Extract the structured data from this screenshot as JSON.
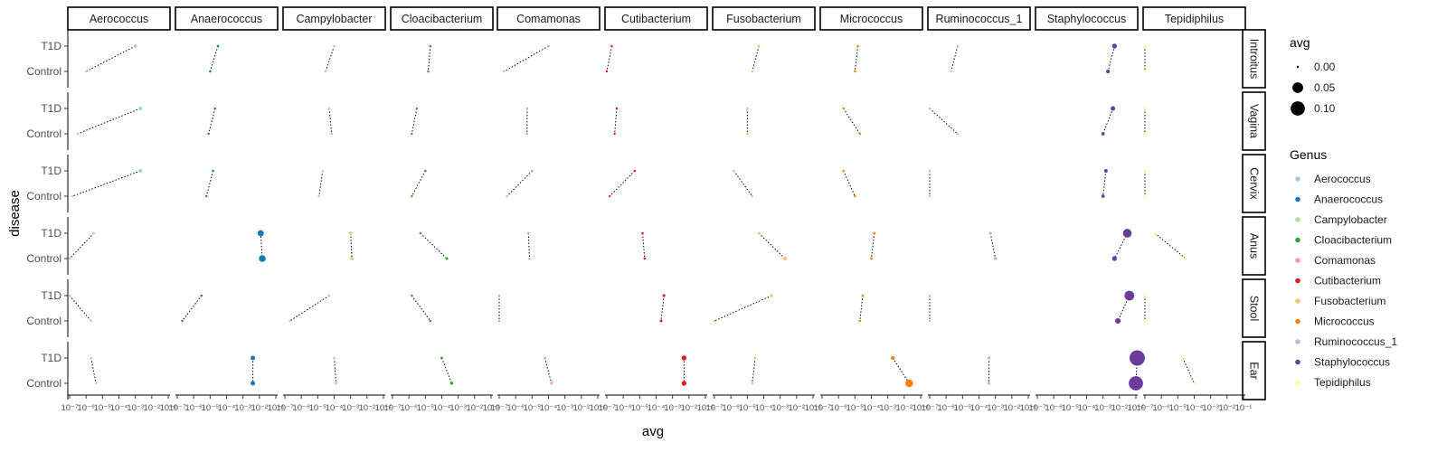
{
  "chart_data": {
    "type": "scatter",
    "subtype": "faceted dumbbell plot",
    "xlabel": "avg",
    "ylabel": "disease",
    "x_scale": "log10",
    "x_tick_labels": [
      "10⁻⁷",
      "10⁻⁶",
      "10⁻⁵",
      "10⁻⁴",
      "10⁻³",
      "10⁻²",
      "10⁻¹"
    ],
    "y_categories": [
      "T1D",
      "Control"
    ],
    "column_facets": [
      "Aerococcus",
      "Anaerococcus",
      "Campylobacter",
      "Cloacibacterium",
      "Comamonas",
      "Cutibacterium",
      "Fusobacterium",
      "Micrococcus",
      "Ruminococcus_1",
      "Staphylococcus",
      "Tepidiphilus"
    ],
    "row_facets": [
      "Introitus",
      "Vagina",
      "Cervix",
      "Anus",
      "Stool",
      "Ear"
    ],
    "colors": {
      "Aerococcus": "#a6cee3",
      "Anaerococcus": "#1f78b4",
      "Campylobacter": "#b2df8a",
      "Cloacibacterium": "#33a02c",
      "Comamonas": "#fb9a99",
      "Cutibacterium": "#e31a1c",
      "Fusobacterium": "#fdbf6f",
      "Micrococcus": "#ff7f00",
      "Ruminococcus_1": "#cab2d6",
      "Staphylococcus": "#6a3d9a",
      "Tepidiphilus": "#ffff99"
    },
    "size_legend": {
      "title": "avg",
      "labels": [
        "0.00",
        "0.05",
        "0.10"
      ],
      "values": [
        0.0,
        0.05,
        0.1
      ]
    },
    "color_legend": {
      "title": "Genus"
    },
    "values": [
      {
        "genus": "Aerococcus",
        "site": "Introitus",
        "T1D": 0.001,
        "Control": 1e-06
      },
      {
        "genus": "Aerococcus",
        "site": "Vagina",
        "T1D": 0.002,
        "Control": 3e-07
      },
      {
        "genus": "Aerococcus",
        "site": "Cervix",
        "T1D": 0.002,
        "Control": 1.5e-07
      },
      {
        "genus": "Aerococcus",
        "site": "Anus",
        "T1D": 3e-06,
        "Control": 1e-07
      },
      {
        "genus": "Aerococcus",
        "site": "Stool",
        "T1D": 1e-07,
        "Control": 2e-06
      },
      {
        "genus": "Aerococcus",
        "site": "Ear",
        "T1D": 2e-06,
        "Control": 4e-06
      },
      {
        "genus": "Anaerococcus",
        "site": "Introitus",
        "T1D": 3e-05,
        "Control": 1e-05
      },
      {
        "genus": "Anaerococcus",
        "site": "Vagina",
        "T1D": 2e-05,
        "Control": 8e-06
      },
      {
        "genus": "Anaerococcus",
        "site": "Cervix",
        "T1D": 1.5e-05,
        "Control": 6e-06
      },
      {
        "genus": "Anaerococcus",
        "site": "Anus",
        "T1D": 0.012,
        "Control": 0.015
      },
      {
        "genus": "Anaerococcus",
        "site": "Stool",
        "T1D": 3e-06,
        "Control": 2e-07
      },
      {
        "genus": "Anaerococcus",
        "site": "Ear",
        "T1D": 0.004,
        "Control": 0.004
      },
      {
        "genus": "Campylobacter",
        "site": "Introitus",
        "T1D": 0.0001,
        "Control": 3e-05
      },
      {
        "genus": "Campylobacter",
        "site": "Vagina",
        "T1D": 5e-05,
        "Control": 7e-05
      },
      {
        "genus": "Campylobacter",
        "site": "Cervix",
        "T1D": 2e-05,
        "Control": 1.2e-05
      },
      {
        "genus": "Campylobacter",
        "site": "Anus",
        "T1D": 0.001,
        "Control": 0.0012
      },
      {
        "genus": "Campylobacter",
        "site": "Stool",
        "T1D": 5e-05,
        "Control": 2e-07
      },
      {
        "genus": "Campylobacter",
        "site": "Ear",
        "T1D": 0.0001,
        "Control": 0.00013
      },
      {
        "genus": "Cloacibacterium",
        "site": "Introitus",
        "T1D": 2e-05,
        "Control": 1.5e-05
      },
      {
        "genus": "Cloacibacterium",
        "site": "Vagina",
        "T1D": 3e-06,
        "Control": 1.5e-06
      },
      {
        "genus": "Cloacibacterium",
        "site": "Cervix",
        "T1D": 1e-05,
        "Control": 1.5e-06
      },
      {
        "genus": "Cloacibacterium",
        "site": "Anus",
        "T1D": 5e-06,
        "Control": 0.0002
      },
      {
        "genus": "Cloacibacterium",
        "site": "Stool",
        "T1D": 1.5e-06,
        "Control": 2e-05
      },
      {
        "genus": "Cloacibacterium",
        "site": "Ear",
        "T1D": 0.0001,
        "Control": 0.0004
      },
      {
        "genus": "Comamonas",
        "site": "Introitus",
        "T1D": 0.0001,
        "Control": 2e-07
      },
      {
        "genus": "Comamonas",
        "site": "Vagina",
        "T1D": 5e-06,
        "Control": 5e-06
      },
      {
        "genus": "Comamonas",
        "site": "Cervix",
        "T1D": 1e-05,
        "Control": 3e-07
      },
      {
        "genus": "Comamonas",
        "site": "Anus",
        "T1D": 6e-06,
        "Control": 7e-06
      },
      {
        "genus": "Comamonas",
        "site": "Stool",
        "T1D": 1e-07,
        "Control": 1e-07
      },
      {
        "genus": "Comamonas",
        "site": "Ear",
        "T1D": 6e-05,
        "Control": 0.00015
      },
      {
        "genus": "Cutibacterium",
        "site": "Introitus",
        "T1D": 2e-07,
        "Control": 1e-07
      },
      {
        "genus": "Cutibacterium",
        "site": "Vagina",
        "T1D": 4e-07,
        "Control": 3e-07
      },
      {
        "genus": "Cutibacterium",
        "site": "Cervix",
        "T1D": 5e-06,
        "Control": 1.5e-07
      },
      {
        "genus": "Cutibacterium",
        "site": "Anus",
        "T1D": 1.5e-05,
        "Control": 2e-05
      },
      {
        "genus": "Cutibacterium",
        "site": "Stool",
        "T1D": 0.0003,
        "Control": 0.0002
      },
      {
        "genus": "Cutibacterium",
        "site": "Ear",
        "T1D": 0.005,
        "Control": 0.005
      },
      {
        "genus": "Fusobacterium",
        "site": "Introitus",
        "T1D": 5e-05,
        "Control": 2e-05
      },
      {
        "genus": "Fusobacterium",
        "site": "Vagina",
        "T1D": 1e-05,
        "Control": 1e-05
      },
      {
        "genus": "Fusobacterium",
        "site": "Cervix",
        "T1D": 1.5e-06,
        "Control": 2e-05
      },
      {
        "genus": "Fusobacterium",
        "site": "Anus",
        "T1D": 5e-05,
        "Control": 0.002
      },
      {
        "genus": "Fusobacterium",
        "site": "Stool",
        "T1D": 0.0003,
        "Control": 1e-07
      },
      {
        "genus": "Fusobacterium",
        "site": "Ear",
        "T1D": 3e-05,
        "Control": 2e-05
      },
      {
        "genus": "Micrococcus",
        "site": "Introitus",
        "T1D": 1.5e-05,
        "Control": 1e-05
      },
      {
        "genus": "Micrococcus",
        "site": "Vagina",
        "T1D": 2e-06,
        "Control": 2e-05
      },
      {
        "genus": "Micrococcus",
        "site": "Cervix",
        "T1D": 2e-06,
        "Control": 1e-05
      },
      {
        "genus": "Micrococcus",
        "site": "Anus",
        "T1D": 0.00015,
        "Control": 0.0001
      },
      {
        "genus": "Micrococcus",
        "site": "Stool",
        "T1D": 3e-05,
        "Control": 2e-05
      },
      {
        "genus": "Micrococcus",
        "site": "Ear",
        "T1D": 0.002,
        "Control": 0.02
      },
      {
        "genus": "Ruminococcus_1",
        "site": "Introitus",
        "T1D": 5e-06,
        "Control": 2e-06
      },
      {
        "genus": "Ruminococcus_1",
        "site": "Vagina",
        "T1D": 1e-07,
        "Control": 5e-06
      },
      {
        "genus": "Ruminococcus_1",
        "site": "Cervix",
        "T1D": 1e-07,
        "Control": 1e-07
      },
      {
        "genus": "Ruminococcus_1",
        "site": "Anus",
        "T1D": 0.0005,
        "Control": 0.001
      },
      {
        "genus": "Ruminococcus_1",
        "site": "Stool",
        "T1D": 1e-07,
        "Control": 1e-07
      },
      {
        "genus": "Ruminococcus_1",
        "site": "Ear",
        "T1D": 0.0004,
        "Control": 0.0004
      },
      {
        "genus": "Staphylococcus",
        "site": "Introitus",
        "T1D": 0.005,
        "Control": 0.002
      },
      {
        "genus": "Staphylococcus",
        "site": "Vagina",
        "T1D": 0.004,
        "Control": 0.001
      },
      {
        "genus": "Staphylococcus",
        "site": "Cervix",
        "T1D": 0.0015,
        "Control": 0.001
      },
      {
        "genus": "Staphylococcus",
        "site": "Anus",
        "T1D": 0.03,
        "Control": 0.005
      },
      {
        "genus": "Staphylococcus",
        "site": "Stool",
        "T1D": 0.04,
        "Control": 0.008
      },
      {
        "genus": "Staphylococcus",
        "site": "Ear",
        "T1D": 0.12,
        "Control": 0.1
      },
      {
        "genus": "Tepidiphilus",
        "site": "Introitus",
        "T1D": 1e-07,
        "Control": 1e-07
      },
      {
        "genus": "Tepidiphilus",
        "site": "Vagina",
        "T1D": 1e-07,
        "Control": 1e-07
      },
      {
        "genus": "Tepidiphilus",
        "site": "Cervix",
        "T1D": 1e-07,
        "Control": 1e-07
      },
      {
        "genus": "Tepidiphilus",
        "site": "Anus",
        "T1D": 4e-07,
        "Control": 3e-05
      },
      {
        "genus": "Tepidiphilus",
        "site": "Stool",
        "T1D": 1e-07,
        "Control": 1e-07
      },
      {
        "genus": "Tepidiphilus",
        "site": "Ear",
        "T1D": 2e-05,
        "Control": 0.0001
      }
    ]
  }
}
